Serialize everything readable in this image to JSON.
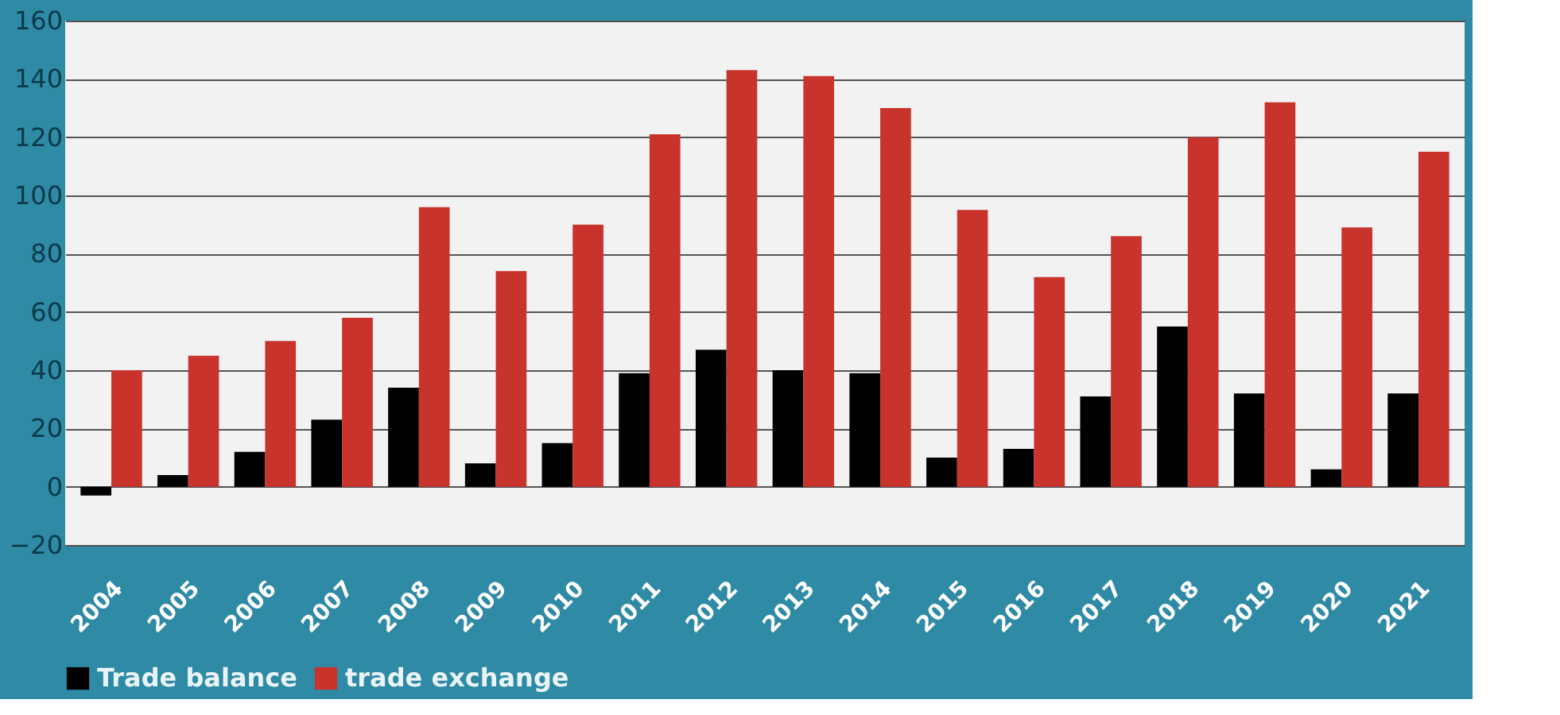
{
  "chart_data": {
    "type": "bar",
    "categories": [
      "2004",
      "2005",
      "2006",
      "2007",
      "2008",
      "2009",
      "2010",
      "2011",
      "2012",
      "2013",
      "2014",
      "2015",
      "2016",
      "2017",
      "2018",
      "2019",
      "2020",
      "2021"
    ],
    "series": [
      {
        "name": "Trade balance",
        "color": "#000000",
        "values": [
          -3,
          4,
          12,
          23,
          34,
          8,
          15,
          39,
          47,
          40,
          39,
          10,
          13,
          31,
          55,
          32,
          6,
          32
        ]
      },
      {
        "name": "trade exchange",
        "color": "#c8342c",
        "values": [
          40,
          45,
          50,
          58,
          96,
          74,
          90,
          121,
          143,
          141,
          130,
          95,
          72,
          86,
          120,
          132,
          89,
          115
        ]
      }
    ],
    "ylim": [
      -20,
      160
    ],
    "yticks": [
      -20,
      0,
      20,
      40,
      60,
      80,
      100,
      120,
      140,
      160
    ],
    "grid": "y",
    "legend": "bottom"
  }
}
